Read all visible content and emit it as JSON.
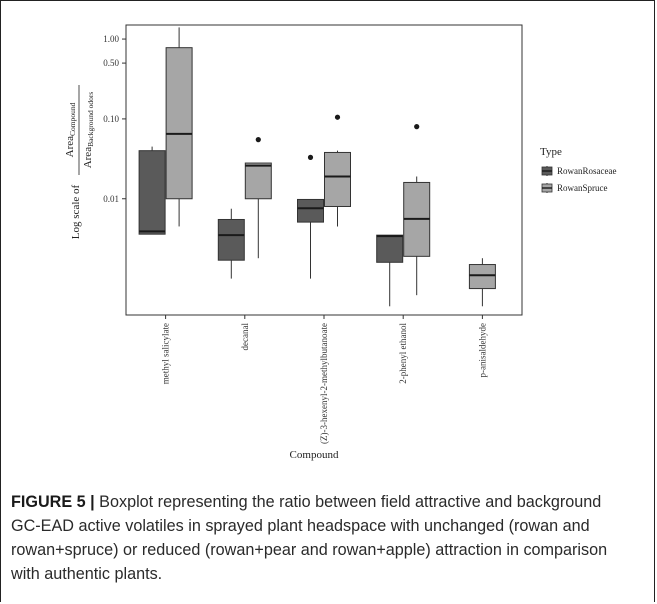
{
  "caption": {
    "label": "FIGURE 5 |",
    "text": " Boxplot representing the ratio between field attractive and background GC-EAD active volatiles in sprayed plant headspace with unchanged (rowan and rowan+spruce) or reduced (rowan+pear and rowan+apple) attraction in comparison with authentic plants."
  },
  "chart_data": {
    "type": "boxplot",
    "title": "",
    "xlabel": "Compound",
    "ylabel": {
      "prefix": "Log scale of",
      "numerator": "Area",
      "numerator_sub": "Compound",
      "denominator": "Area",
      "denominator_sub": "Background odors"
    },
    "y_scale": "log",
    "ylim": [
      0.00035,
      1.5
    ],
    "y_ticks": [
      {
        "value": 1.0,
        "label": "1.00"
      },
      {
        "value": 0.5,
        "label": "0.50"
      },
      {
        "value": 0.1,
        "label": "0.10"
      },
      {
        "value": 0.01,
        "label": "0.01"
      }
    ],
    "categories": [
      "methyl salicylate",
      "decanal",
      "(Z)-3-hexenyl-2-methylbutanoate",
      "2-phenyl ethanol",
      "p-anisaldehyde"
    ],
    "legend": {
      "title": "Type",
      "position": "right"
    },
    "series": [
      {
        "name": "RowanRosaceae",
        "color": "#5a5a5a",
        "boxes": [
          {
            "category": "methyl salicylate",
            "whisker_low": 0.0036,
            "q1": 0.0036,
            "median": 0.0039,
            "q3": 0.04,
            "whisker_high": 0.045,
            "outliers": []
          },
          {
            "category": "decanal",
            "whisker_low": 0.001,
            "q1": 0.0017,
            "median": 0.0035,
            "q3": 0.0055,
            "whisker_high": 0.0075,
            "outliers": []
          },
          {
            "category": "(Z)-3-hexenyl-2-methylbutanoate",
            "whisker_low": 0.001,
            "q1": 0.0051,
            "median": 0.0076,
            "q3": 0.0098,
            "whisker_high": 0.0098,
            "outliers": [
              0.033
            ]
          },
          {
            "category": "2-phenyl ethanol",
            "whisker_low": 0.00045,
            "q1": 0.0016,
            "median": 0.0034,
            "q3": 0.0035,
            "whisker_high": 0.0035,
            "outliers": []
          }
        ]
      },
      {
        "name": "RowanSpruce",
        "color": "#a6a6a6",
        "boxes": [
          {
            "category": "methyl salicylate",
            "whisker_low": 0.0045,
            "q1": 0.01,
            "median": 0.065,
            "q3": 0.78,
            "whisker_high": 1.4,
            "outliers": []
          },
          {
            "category": "decanal",
            "whisker_low": 0.0018,
            "q1": 0.01,
            "median": 0.026,
            "q3": 0.028,
            "whisker_high": 0.028,
            "outliers": [
              0.055
            ]
          },
          {
            "category": "(Z)-3-hexenyl-2-methylbutanoate",
            "whisker_low": 0.0045,
            "q1": 0.008,
            "median": 0.019,
            "q3": 0.038,
            "whisker_high": 0.04,
            "outliers": [
              0.105
            ]
          },
          {
            "category": "2-phenyl ethanol",
            "whisker_low": 0.00062,
            "q1": 0.0019,
            "median": 0.0056,
            "q3": 0.016,
            "whisker_high": 0.019,
            "outliers": [
              0.08
            ]
          },
          {
            "category": "p-anisaldehyde",
            "whisker_low": 0.00045,
            "q1": 0.00075,
            "median": 0.0011,
            "q3": 0.0015,
            "whisker_high": 0.0018,
            "outliers": []
          }
        ]
      }
    ]
  }
}
